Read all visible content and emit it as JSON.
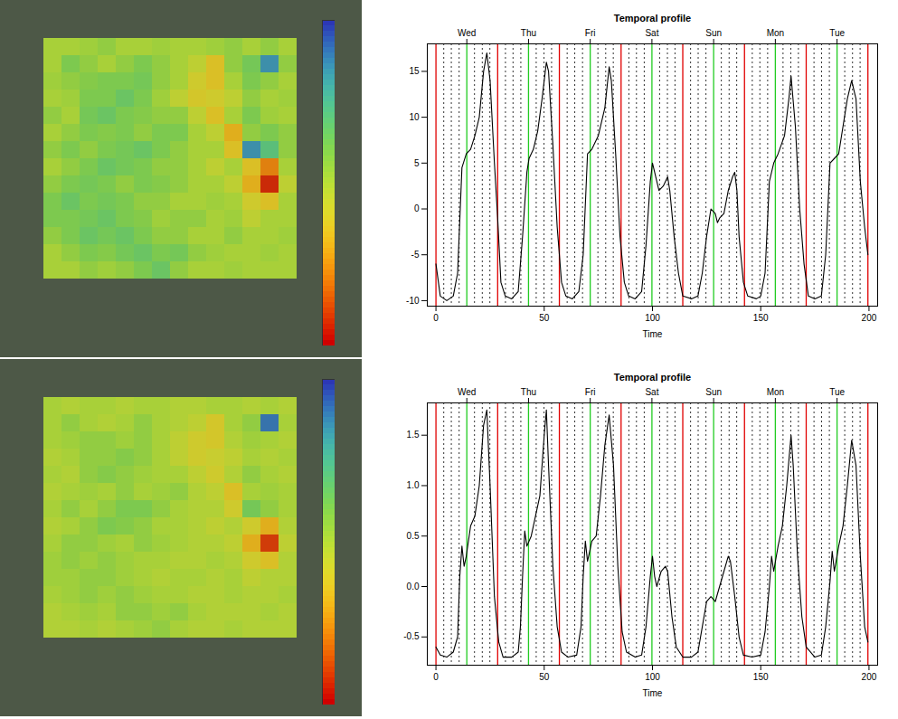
{
  "chart_data": [
    {
      "type": "heatmap",
      "color_range": [
        0,
        1
      ],
      "cells": [
        [
          0.5,
          0.5,
          0.52,
          0.55,
          0.5,
          0.5,
          0.52,
          0.5,
          0.5,
          0.52,
          0.55,
          0.5,
          0.55,
          0.5
        ],
        [
          0.5,
          0.6,
          0.55,
          0.5,
          0.55,
          0.6,
          0.55,
          0.5,
          0.45,
          0.35,
          0.55,
          0.62,
          0.85,
          0.55
        ],
        [
          0.52,
          0.55,
          0.58,
          0.6,
          0.6,
          0.62,
          0.55,
          0.5,
          0.4,
          0.35,
          0.5,
          0.6,
          0.55,
          0.5
        ],
        [
          0.5,
          0.52,
          0.6,
          0.6,
          0.65,
          0.6,
          0.52,
          0.45,
          0.38,
          0.4,
          0.45,
          0.55,
          0.5,
          0.52
        ],
        [
          0.55,
          0.5,
          0.62,
          0.65,
          0.6,
          0.58,
          0.55,
          0.55,
          0.45,
          0.35,
          0.5,
          0.6,
          0.52,
          0.5
        ],
        [
          0.5,
          0.55,
          0.6,
          0.58,
          0.6,
          0.55,
          0.6,
          0.6,
          0.5,
          0.45,
          0.3,
          0.55,
          0.6,
          0.55
        ],
        [
          0.55,
          0.6,
          0.55,
          0.6,
          0.62,
          0.65,
          0.6,
          0.55,
          0.5,
          0.5,
          0.35,
          0.85,
          0.7,
          0.55
        ],
        [
          0.5,
          0.55,
          0.6,
          0.65,
          0.62,
          0.6,
          0.55,
          0.55,
          0.5,
          0.45,
          0.5,
          0.35,
          0.2,
          0.5
        ],
        [
          0.55,
          0.6,
          0.62,
          0.6,
          0.55,
          0.6,
          0.58,
          0.55,
          0.5,
          0.5,
          0.45,
          0.3,
          0.05,
          0.45
        ],
        [
          0.6,
          0.65,
          0.6,
          0.62,
          0.6,
          0.55,
          0.55,
          0.5,
          0.5,
          0.52,
          0.5,
          0.4,
          0.35,
          0.5
        ],
        [
          0.6,
          0.6,
          0.62,
          0.65,
          0.6,
          0.58,
          0.52,
          0.55,
          0.55,
          0.5,
          0.52,
          0.45,
          0.5,
          0.5
        ],
        [
          0.55,
          0.6,
          0.65,
          0.62,
          0.65,
          0.6,
          0.55,
          0.55,
          0.5,
          0.5,
          0.55,
          0.5,
          0.5,
          0.52
        ],
        [
          0.5,
          0.55,
          0.6,
          0.58,
          0.62,
          0.65,
          0.6,
          0.62,
          0.55,
          0.52,
          0.5,
          0.5,
          0.52,
          0.5
        ],
        [
          0.5,
          0.5,
          0.55,
          0.52,
          0.55,
          0.6,
          0.65,
          0.55,
          0.5,
          0.5,
          0.52,
          0.5,
          0.5,
          0.5
        ]
      ]
    },
    {
      "type": "line",
      "title": "Temporal profile",
      "x_label": "Time",
      "color": "#000000",
      "xlim": [
        -4,
        204
      ],
      "xticks": [
        0,
        50,
        100,
        150,
        200
      ],
      "ylim": [
        -10.6,
        18
      ],
      "yticks": [
        -10,
        -5,
        0,
        5,
        10,
        15
      ],
      "top_ticks": [
        {
          "value": 14.25,
          "label": "Wed"
        },
        {
          "value": 42.75,
          "label": "Thu"
        },
        {
          "value": 71.25,
          "label": "Fri"
        },
        {
          "value": 99.75,
          "label": "Sat"
        },
        {
          "value": 128.25,
          "label": "Sun"
        },
        {
          "value": 156.75,
          "label": "Mon"
        },
        {
          "value": 185.25,
          "label": "Tue"
        }
      ],
      "day_boundaries": [
        0,
        28.5,
        57,
        85.5,
        114,
        142.5,
        171,
        199.5
      ],
      "midday": [
        14.25,
        42.75,
        71.25,
        99.75,
        128.25,
        156.75,
        185.25
      ],
      "hour_lines": [
        3.6,
        7.1,
        10.7,
        17.8,
        21.4,
        24.9,
        32.1,
        35.6,
        39.2,
        46.3,
        49.9,
        53.4,
        60.6,
        64.1,
        67.7,
        74.8,
        78.4,
        81.9,
        89.1,
        92.6,
        96.2,
        103.3,
        106.9,
        110.4,
        117.6,
        121.1,
        124.7,
        131.8,
        135.4,
        138.9,
        146.1,
        149.6,
        153.2,
        160.3,
        163.9,
        167.4,
        174.6,
        178.1,
        181.7,
        188.8,
        192.4,
        195.9
      ],
      "x": [
        0,
        2,
        5,
        8,
        10,
        12,
        14,
        16,
        18,
        20,
        22,
        23.5,
        25,
        27,
        28.5,
        30,
        32,
        35,
        38,
        40,
        42,
        43,
        45,
        47,
        49,
        51,
        52,
        54,
        56,
        58,
        60,
        63,
        66,
        68,
        70,
        72,
        75,
        78,
        80,
        81,
        83,
        85,
        87,
        89,
        92,
        95,
        97,
        99,
        100,
        101,
        103,
        105,
        107,
        108,
        110,
        112,
        114,
        118,
        121,
        123,
        125,
        127,
        129,
        130,
        131,
        133,
        135,
        137,
        138,
        139,
        140,
        142,
        144,
        148,
        150,
        152,
        154,
        156,
        158,
        161,
        163,
        164,
        166,
        168,
        170,
        172,
        175,
        178,
        180,
        182,
        184,
        186,
        188,
        190,
        192,
        194,
        196,
        198,
        199.5
      ],
      "values": [
        -6,
        -9.5,
        -10,
        -9.5,
        -7,
        4.5,
        6,
        6.5,
        8,
        10,
        15,
        17,
        14,
        5,
        -1,
        -8,
        -9.5,
        -9.8,
        -9,
        -3,
        4,
        5.5,
        6.5,
        8.5,
        12,
        16,
        15,
        7,
        -2,
        -8,
        -9.5,
        -9.8,
        -9,
        -5,
        6,
        6.5,
        8,
        11,
        15.5,
        14,
        6,
        -3,
        -8,
        -9.5,
        -9.8,
        -9,
        -4,
        3,
        5,
        4,
        2,
        2.5,
        3.5,
        2,
        -3,
        -7,
        -9.5,
        -9.8,
        -9.5,
        -7,
        -3,
        0,
        -0.5,
        -1.5,
        -1,
        -0.5,
        2,
        3.5,
        4,
        2,
        -3,
        -8,
        -9.5,
        -9.8,
        -9.5,
        -7,
        3,
        5,
        6,
        8,
        12,
        14.5,
        9,
        0,
        -6,
        -9.5,
        -9.8,
        -9.5,
        -5,
        5,
        5.5,
        6,
        9,
        12,
        14,
        12,
        3,
        -2,
        -5
      ]
    },
    {
      "type": "heatmap",
      "color_range": [
        0,
        1
      ],
      "cells": [
        [
          0.5,
          0.48,
          0.5,
          0.5,
          0.48,
          0.5,
          0.5,
          0.48,
          0.48,
          0.5,
          0.5,
          0.48,
          0.5,
          0.48
        ],
        [
          0.5,
          0.55,
          0.5,
          0.48,
          0.5,
          0.55,
          0.5,
          0.48,
          0.45,
          0.38,
          0.5,
          0.55,
          0.9,
          0.5
        ],
        [
          0.5,
          0.52,
          0.55,
          0.55,
          0.52,
          0.55,
          0.5,
          0.45,
          0.4,
          0.38,
          0.48,
          0.52,
          0.5,
          0.48
        ],
        [
          0.48,
          0.5,
          0.55,
          0.55,
          0.58,
          0.55,
          0.5,
          0.45,
          0.4,
          0.42,
          0.45,
          0.5,
          0.48,
          0.5
        ],
        [
          0.5,
          0.48,
          0.55,
          0.58,
          0.55,
          0.52,
          0.5,
          0.5,
          0.45,
          0.4,
          0.48,
          0.55,
          0.5,
          0.48
        ],
        [
          0.48,
          0.5,
          0.52,
          0.5,
          0.55,
          0.5,
          0.52,
          0.55,
          0.48,
          0.45,
          0.35,
          0.5,
          0.52,
          0.5
        ],
        [
          0.5,
          0.55,
          0.5,
          0.55,
          0.6,
          0.6,
          0.55,
          0.5,
          0.48,
          0.48,
          0.4,
          0.62,
          0.55,
          0.5
        ],
        [
          0.48,
          0.5,
          0.55,
          0.6,
          0.58,
          0.55,
          0.5,
          0.5,
          0.48,
          0.45,
          0.48,
          0.4,
          0.3,
          0.48
        ],
        [
          0.5,
          0.55,
          0.55,
          0.52,
          0.5,
          0.55,
          0.52,
          0.5,
          0.48,
          0.48,
          0.45,
          0.3,
          0.08,
          0.45
        ],
        [
          0.52,
          0.55,
          0.52,
          0.55,
          0.52,
          0.5,
          0.5,
          0.48,
          0.48,
          0.5,
          0.48,
          0.4,
          0.35,
          0.48
        ],
        [
          0.52,
          0.52,
          0.55,
          0.55,
          0.52,
          0.5,
          0.48,
          0.5,
          0.5,
          0.48,
          0.5,
          0.45,
          0.48,
          0.48
        ],
        [
          0.5,
          0.52,
          0.55,
          0.52,
          0.55,
          0.52,
          0.5,
          0.5,
          0.48,
          0.48,
          0.5,
          0.48,
          0.48,
          0.5
        ],
        [
          0.48,
          0.5,
          0.52,
          0.5,
          0.55,
          0.55,
          0.52,
          0.55,
          0.5,
          0.48,
          0.48,
          0.48,
          0.5,
          0.48
        ],
        [
          0.48,
          0.48,
          0.5,
          0.48,
          0.5,
          0.52,
          0.55,
          0.5,
          0.48,
          0.48,
          0.5,
          0.48,
          0.48,
          0.48
        ]
      ]
    },
    {
      "type": "line",
      "title": "Temporal profile",
      "x_label": "Time",
      "color": "#000000",
      "xlim": [
        -4,
        204
      ],
      "xticks": [
        0,
        50,
        100,
        150,
        200
      ],
      "ylim": [
        -0.78,
        1.82
      ],
      "yticks": [
        -0.5,
        {
          "value": 0,
          "label": "0.0"
        },
        0.5,
        {
          "value": 1,
          "label": "1.0"
        },
        1.5
      ],
      "top_ticks": [
        {
          "value": 14.25,
          "label": "Wed"
        },
        {
          "value": 42.75,
          "label": "Thu"
        },
        {
          "value": 71.25,
          "label": "Fri"
        },
        {
          "value": 99.75,
          "label": "Sat"
        },
        {
          "value": 128.25,
          "label": "Sun"
        },
        {
          "value": 156.75,
          "label": "Mon"
        },
        {
          "value": 185.25,
          "label": "Tue"
        }
      ],
      "day_boundaries": [
        0,
        28.5,
        57,
        85.5,
        114,
        142.5,
        171,
        199.5
      ],
      "midday": [
        14.25,
        42.75,
        71.25,
        99.75,
        128.25,
        156.75,
        185.25
      ],
      "hour_lines": [
        3.6,
        7.1,
        10.7,
        17.8,
        21.4,
        24.9,
        32.1,
        35.6,
        39.2,
        46.3,
        49.9,
        53.4,
        60.6,
        64.1,
        67.7,
        74.8,
        78.4,
        81.9,
        89.1,
        92.6,
        96.2,
        103.3,
        106.9,
        110.4,
        117.6,
        121.1,
        124.7,
        131.8,
        135.4,
        138.9,
        146.1,
        149.6,
        153.2,
        160.3,
        163.9,
        167.4,
        174.6,
        178.1,
        181.7,
        188.8,
        192.4,
        195.9
      ],
      "x": [
        0,
        2,
        5,
        8,
        10,
        11,
        12,
        13,
        14,
        16,
        18,
        20,
        22,
        23.5,
        25,
        27,
        29,
        31,
        35,
        38,
        39,
        40,
        41,
        42,
        44,
        46,
        48,
        50,
        51,
        52,
        54,
        56,
        58,
        61,
        65,
        67,
        68,
        69,
        70,
        72,
        74,
        76,
        78,
        80,
        82,
        84,
        86,
        88,
        92,
        95,
        97,
        99,
        100,
        101,
        102,
        104,
        106,
        107,
        109,
        111,
        114,
        118,
        121,
        123,
        125,
        127,
        129,
        131,
        133,
        135,
        136,
        138,
        140,
        142,
        146,
        150,
        152,
        154,
        155,
        156,
        158,
        160,
        162,
        164,
        165,
        167,
        169,
        171,
        175,
        178,
        180,
        182,
        183,
        184,
        186,
        188,
        190,
        192,
        194,
        196,
        198,
        199.5
      ],
      "values": [
        -0.6,
        -0.68,
        -0.7,
        -0.65,
        -0.5,
        0.1,
        0.4,
        0.2,
        0.3,
        0.6,
        0.7,
        1.0,
        1.6,
        1.75,
        1.0,
        -0.1,
        -0.55,
        -0.7,
        -0.7,
        -0.65,
        -0.4,
        0.1,
        0.55,
        0.4,
        0.5,
        0.7,
        0.9,
        1.5,
        1.75,
        1.2,
        0.2,
        -0.4,
        -0.65,
        -0.7,
        -0.68,
        -0.4,
        0.1,
        0.45,
        0.25,
        0.45,
        0.5,
        0.9,
        1.4,
        1.7,
        1.2,
        0.2,
        -0.45,
        -0.65,
        -0.7,
        -0.68,
        -0.4,
        0.1,
        0.3,
        0.1,
        0.0,
        0.15,
        0.2,
        0.15,
        -0.3,
        -0.6,
        -0.7,
        -0.7,
        -0.65,
        -0.4,
        -0.15,
        -0.1,
        -0.15,
        0.0,
        0.15,
        0.3,
        0.25,
        -0.1,
        -0.5,
        -0.68,
        -0.7,
        -0.68,
        -0.45,
        0.0,
        0.3,
        0.15,
        0.4,
        0.6,
        1.0,
        1.5,
        1.2,
        0.3,
        -0.3,
        -0.6,
        -0.7,
        -0.68,
        -0.4,
        0.05,
        0.35,
        0.15,
        0.4,
        0.6,
        1.0,
        1.45,
        1.2,
        0.3,
        -0.4,
        -0.55
      ]
    }
  ]
}
